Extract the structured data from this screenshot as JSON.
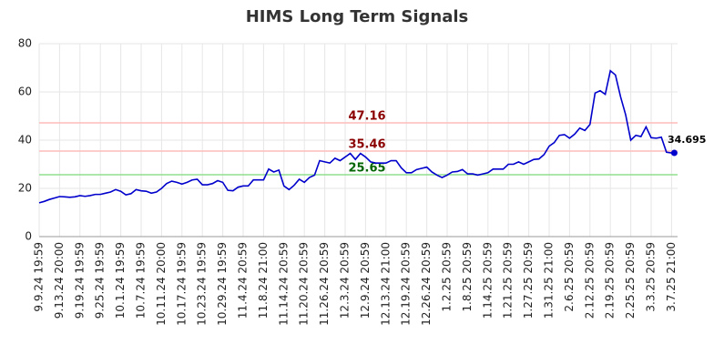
{
  "chart_data": {
    "type": "line",
    "title": "HIMS Long Term Signals",
    "categories": [
      "9.9.24 19:59",
      null,
      null,
      null,
      "9.13.24 20:00",
      null,
      null,
      null,
      "9.19.24 19:59",
      null,
      null,
      null,
      "9.25.24 19:59",
      null,
      null,
      null,
      "10.1.24 19:59",
      null,
      null,
      null,
      "10.7.24 19:59",
      null,
      null,
      null,
      "10.11.24 20:00",
      null,
      null,
      null,
      "10.17.24 19:59",
      null,
      null,
      null,
      "10.23.24 19:59",
      null,
      null,
      null,
      "10.29.24 19:59",
      null,
      null,
      null,
      "11.4.24 20:59",
      null,
      null,
      null,
      "11.8.24 21:00",
      null,
      null,
      null,
      "11.14.24 20:59",
      null,
      null,
      null,
      "11.20.24 20:59",
      null,
      null,
      null,
      "11.26.24 20:59",
      null,
      null,
      null,
      "12.3.24 20:59",
      null,
      null,
      null,
      "12.9.24 20:59",
      null,
      null,
      null,
      "12.13.24 21:00",
      null,
      null,
      null,
      "12.19.24 20:59",
      null,
      null,
      null,
      "12.26.24 20:59",
      null,
      null,
      null,
      "1.2.25 20:59",
      null,
      null,
      null,
      "1.8.25 20:59",
      null,
      null,
      null,
      "1.14.25 20:59",
      null,
      null,
      null,
      "1.21.25 20:59",
      null,
      null,
      null,
      "1.27.25 20:59",
      null,
      null,
      null,
      "1.31.25 21:00",
      null,
      null,
      null,
      "2.6.25 20:59",
      null,
      null,
      null,
      "2.12.25 20:59",
      null,
      null,
      null,
      "2.19.25 20:59",
      null,
      null,
      null,
      "2.25.25 20:59",
      null,
      null,
      null,
      "3.3.25 20:59",
      null,
      null,
      null,
      "3.7.25 21:00"
    ],
    "series": [
      {
        "color": "#0000cc",
        "values": [
          14,
          14.6,
          15.4,
          16,
          16.6,
          16.5,
          16.3,
          16.5,
          17,
          16.7,
          17,
          17.5,
          17.5,
          18,
          18.5,
          19.5,
          18.8,
          17.3,
          17.8,
          19.5,
          19,
          18.8,
          18,
          18.5,
          20,
          22,
          23,
          22.5,
          21.8,
          22.5,
          23.5,
          23.8,
          21.5,
          21.5,
          22,
          23.2,
          22.5,
          19.2,
          19,
          20.5,
          21,
          21,
          23.5,
          23.5,
          23.5,
          28,
          26.8,
          27.6,
          21,
          19.5,
          21.3,
          23.8,
          22.5,
          24.5,
          25.5,
          31.5,
          31,
          30.5,
          32.5,
          31.5,
          33,
          34.5,
          32,
          34.5,
          33,
          31,
          30.5,
          30.5,
          30.5,
          31.5,
          31.5,
          28.5,
          26.5,
          26.5,
          27.8,
          28.3,
          28.8,
          26.8,
          25.5,
          24.5,
          25.5,
          26.8,
          27,
          27.8,
          26,
          26,
          25.5,
          26,
          26.5,
          28,
          28,
          28,
          30,
          30,
          31,
          30,
          31,
          32,
          32.2,
          34,
          37.5,
          39,
          42,
          42.3,
          40.8,
          42.5,
          45,
          44,
          46.5,
          59.5,
          60.5,
          59,
          68.8,
          67,
          58,
          50.5,
          40,
          42,
          41.5,
          45.5,
          41,
          40.8,
          41.2,
          35,
          34.695
        ]
      }
    ],
    "hlines": [
      {
        "value": 47.16,
        "color": "#ffbbbb",
        "label_color": "#8b0000"
      },
      {
        "value": 35.46,
        "color": "#ffbbbb",
        "label_color": "#8b0000"
      },
      {
        "value": 25.65,
        "color": "#90e090",
        "label_color": "#006400"
      }
    ],
    "ylim": [
      0,
      80
    ],
    "yticks": [
      0,
      20,
      40,
      60,
      80
    ],
    "grid": true
  }
}
